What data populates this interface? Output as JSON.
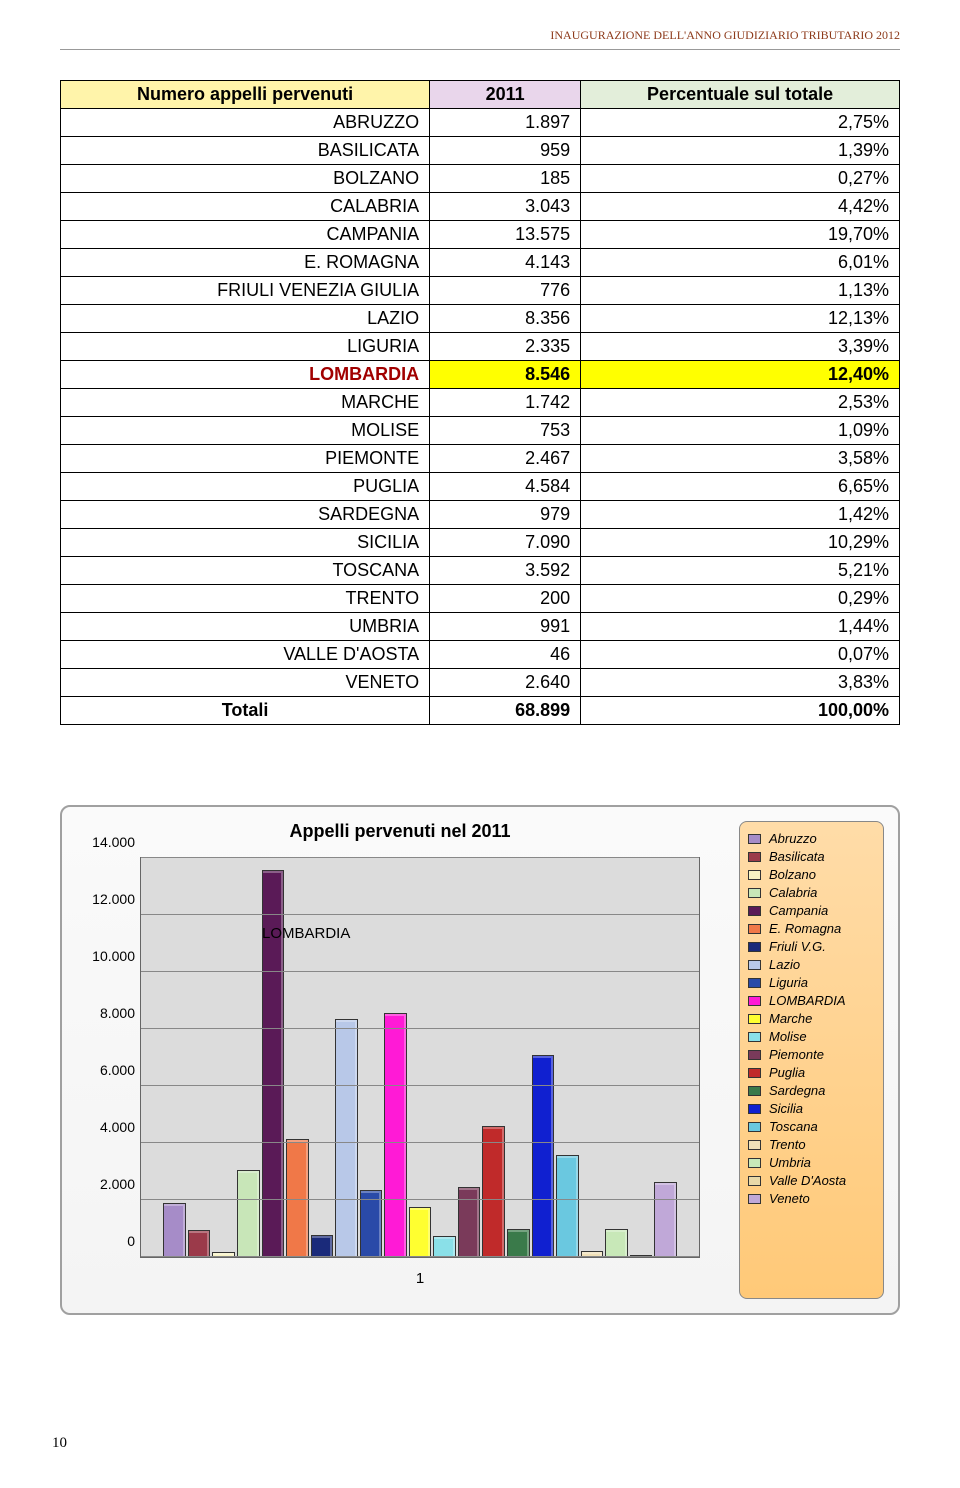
{
  "header": "INAUGURAZIONE DELL'ANNO GIUDIZIARIO TRIBUTARIO 2012",
  "page_number": "10",
  "table": {
    "col_name": "Numero appelli pervenuti",
    "col_year": "2011",
    "col_pct": "Percentuale sul totale",
    "rows": [
      {
        "region": "ABRUZZO",
        "value": "1.897",
        "pct": "2,75%",
        "c": "#a68cc8"
      },
      {
        "region": "BASILICATA",
        "value": "959",
        "pct": "1,39%",
        "c": "#9b3a4a"
      },
      {
        "region": "BOLZANO",
        "value": "185",
        "pct": "0,27%",
        "c": "#f8f3c3"
      },
      {
        "region": "CALABRIA",
        "value": "3.043",
        "pct": "4,42%",
        "c": "#c8e6b8"
      },
      {
        "region": "CAMPANIA",
        "value": "13.575",
        "pct": "19,70%",
        "c": "#5a1a57"
      },
      {
        "region": "E. ROMAGNA",
        "value": "4.143",
        "pct": "6,01%",
        "c": "#f07848"
      },
      {
        "region": "FRIULI VENEZIA GIULIA",
        "value": "776",
        "pct": "1,13%",
        "c": "#1a2a7a",
        "short": "Friuli V.G."
      },
      {
        "region": "LAZIO",
        "value": "8.356",
        "pct": "12,13%",
        "c": "#b8c8e8"
      },
      {
        "region": "LIGURIA",
        "value": "2.335",
        "pct": "3,39%",
        "c": "#2a4aa8"
      },
      {
        "region": "LOMBARDIA",
        "value": "8.546",
        "pct": "12,40%",
        "c": "#ff1ad6",
        "hl": true
      },
      {
        "region": "MARCHE",
        "value": "1.742",
        "pct": "2,53%",
        "c": "#ffff30"
      },
      {
        "region": "MOLISE",
        "value": "753",
        "pct": "1,09%",
        "c": "#8ae0e8"
      },
      {
        "region": "PIEMONTE",
        "value": "2.467",
        "pct": "3,58%",
        "c": "#7a3a5a"
      },
      {
        "region": "PUGLIA",
        "value": "4.584",
        "pct": "6,65%",
        "c": "#c02a2a"
      },
      {
        "region": "SARDEGNA",
        "value": "979",
        "pct": "1,42%",
        "c": "#3a7a4a"
      },
      {
        "region": "SICILIA",
        "value": "7.090",
        "pct": "10,29%",
        "c": "#1020d0"
      },
      {
        "region": "TOSCANA",
        "value": "3.592",
        "pct": "5,21%",
        "c": "#6ac8e0"
      },
      {
        "region": "TRENTO",
        "value": "200",
        "pct": "0,29%",
        "c": "#f0e0b8"
      },
      {
        "region": "UMBRIA",
        "value": "991",
        "pct": "1,44%",
        "c": "#c8e8b8"
      },
      {
        "region": "VALLE  D'AOSTA",
        "value": "46",
        "pct": "0,07%",
        "c": "#e8d8a8",
        "short": "Valle D'Aosta"
      },
      {
        "region": "VENETO",
        "value": "2.640",
        "pct": "3,83%",
        "c": "#c0a8d8"
      }
    ],
    "total_label": "Totali",
    "total_value": "68.899",
    "total_pct": "100,00%"
  },
  "chart": {
    "title": "Appelli pervenuti nel 2011",
    "callout": "LOMBARDIA",
    "xaxis_label": "1",
    "ymax": 14000,
    "ystep": 2000,
    "yticks": [
      "0",
      "2.000",
      "4.000",
      "6.000",
      "8.000",
      "10.000",
      "12.000",
      "14.000"
    ]
  },
  "legend_names": [
    "Abruzzo",
    "Basilicata",
    "Bolzano",
    "Calabria",
    "Campania",
    "E. Romagna",
    "Friuli V.G.",
    "Lazio",
    "Liguria",
    "LOMBARDIA",
    "Marche",
    "Molise",
    "Piemonte",
    "Puglia",
    "Sardegna",
    "Sicilia",
    "Toscana",
    "Trento",
    "Umbria",
    "Valle D'Aosta",
    "Veneto"
  ]
}
